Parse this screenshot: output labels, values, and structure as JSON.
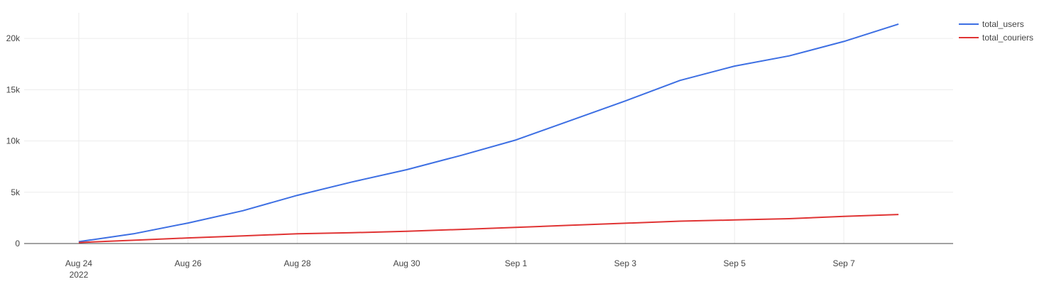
{
  "chart_data": {
    "type": "line",
    "title": "",
    "xlabel": "",
    "ylabel": "",
    "x": [
      "2022-08-24",
      "2022-08-25",
      "2022-08-26",
      "2022-08-27",
      "2022-08-28",
      "2022-08-29",
      "2022-08-30",
      "2022-08-31",
      "2022-09-01",
      "2022-09-02",
      "2022-09-03",
      "2022-09-04",
      "2022-09-05",
      "2022-09-06",
      "2022-09-07",
      "2022-09-08"
    ],
    "xlim": [
      "2022-08-23",
      "2022-09-09"
    ],
    "ylim": [
      0,
      22500
    ],
    "x_ticks": [
      {
        "date": "2022-08-24",
        "label": "Aug 24",
        "sublabel": "2022"
      },
      {
        "date": "2022-08-26",
        "label": "Aug 26",
        "sublabel": ""
      },
      {
        "date": "2022-08-28",
        "label": "Aug 28",
        "sublabel": ""
      },
      {
        "date": "2022-08-30",
        "label": "Aug 30",
        "sublabel": ""
      },
      {
        "date": "2022-09-01",
        "label": "Sep 1",
        "sublabel": ""
      },
      {
        "date": "2022-09-03",
        "label": "Sep 3",
        "sublabel": ""
      },
      {
        "date": "2022-09-05",
        "label": "Sep 5",
        "sublabel": ""
      },
      {
        "date": "2022-09-07",
        "label": "Sep 7",
        "sublabel": ""
      }
    ],
    "y_ticks": [
      {
        "value": 0,
        "label": "0"
      },
      {
        "value": 5000,
        "label": "5k"
      },
      {
        "value": 10000,
        "label": "10k"
      },
      {
        "value": 15000,
        "label": "15k"
      },
      {
        "value": 20000,
        "label": "20k"
      }
    ],
    "grid": true,
    "legend_position": "top-right",
    "series": [
      {
        "name": "total_users",
        "color": "#3d6fe3",
        "values": [
          180,
          950,
          2000,
          3200,
          4700,
          6000,
          7200,
          8600,
          10100,
          12000,
          13900,
          15900,
          17300,
          18300,
          19700,
          21400
        ]
      },
      {
        "name": "total_couriers",
        "color": "#e03434",
        "values": [
          100,
          320,
          550,
          750,
          950,
          1050,
          1200,
          1380,
          1580,
          1780,
          1980,
          2180,
          2300,
          2420,
          2650,
          2830
        ]
      }
    ]
  }
}
